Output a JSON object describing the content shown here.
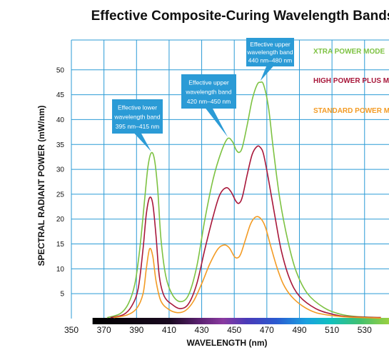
{
  "chart_data": {
    "type": "line",
    "title": "Effective Composite-Curing Wavelength Bands",
    "xlabel": "WAVELENGTH (nm)",
    "ylabel": "SPECTRAL RADIANT POWER (mW/nm)",
    "xlim": [
      350,
      545
    ],
    "ylim": [
      0,
      56
    ],
    "x_ticks": [
      350,
      370,
      390,
      410,
      430,
      450,
      470,
      490,
      510,
      530
    ],
    "y_ticks": [
      5,
      10,
      15,
      20,
      25,
      30,
      35,
      40,
      45,
      50
    ],
    "grid": true,
    "legend_position": "top-right",
    "series": [
      {
        "name": "XTRA POWER MODE",
        "color": "#7dc242",
        "points": [
          [
            372,
            0.2
          ],
          [
            380,
            1.0
          ],
          [
            385,
            3.0
          ],
          [
            389,
            7.0
          ],
          [
            392,
            14.0
          ],
          [
            395,
            24.0
          ],
          [
            397,
            30.5
          ],
          [
            399,
            33.3
          ],
          [
            401,
            32.0
          ],
          [
            403,
            26.0
          ],
          [
            405,
            16.0
          ],
          [
            408,
            8.5
          ],
          [
            412,
            4.8
          ],
          [
            417,
            3.4
          ],
          [
            422,
            4.8
          ],
          [
            427,
            10.5
          ],
          [
            432,
            20.0
          ],
          [
            437,
            28.0
          ],
          [
            442,
            33.5
          ],
          [
            446,
            36.2
          ],
          [
            449,
            35.5
          ],
          [
            451,
            34.0
          ],
          [
            453,
            33.4
          ],
          [
            455,
            34.5
          ],
          [
            458,
            39.0
          ],
          [
            461,
            44.0
          ],
          [
            464,
            47.0
          ],
          [
            466,
            47.5
          ],
          [
            468,
            47.0
          ],
          [
            471,
            42.5
          ],
          [
            474,
            34.0
          ],
          [
            478,
            24.0
          ],
          [
            483,
            15.5
          ],
          [
            488,
            9.5
          ],
          [
            495,
            5.0
          ],
          [
            505,
            2.2
          ],
          [
            515,
            0.9
          ],
          [
            525,
            0.4
          ],
          [
            540,
            0.2
          ]
        ]
      },
      {
        "name": "HIGH POWER PLUS MODE",
        "color": "#a8173a",
        "points": [
          [
            374,
            0.2
          ],
          [
            382,
            0.8
          ],
          [
            387,
            2.5
          ],
          [
            391,
            6.0
          ],
          [
            394,
            14.0
          ],
          [
            396,
            21.0
          ],
          [
            398,
            24.3
          ],
          [
            400,
            23.0
          ],
          [
            402,
            16.5
          ],
          [
            404,
            8.5
          ],
          [
            407,
            4.5
          ],
          [
            412,
            2.8
          ],
          [
            417,
            2.0
          ],
          [
            422,
            3.0
          ],
          [
            427,
            7.0
          ],
          [
            432,
            14.0
          ],
          [
            437,
            20.5
          ],
          [
            441,
            24.8
          ],
          [
            445,
            26.3
          ],
          [
            448,
            25.5
          ],
          [
            451,
            23.6
          ],
          [
            453,
            23.2
          ],
          [
            455,
            24.5
          ],
          [
            458,
            29.0
          ],
          [
            461,
            33.0
          ],
          [
            464,
            34.6
          ],
          [
            466,
            34.4
          ],
          [
            468,
            33.0
          ],
          [
            471,
            28.0
          ],
          [
            475,
            20.5
          ],
          [
            479,
            13.5
          ],
          [
            484,
            8.0
          ],
          [
            490,
            4.5
          ],
          [
            500,
            2.0
          ],
          [
            510,
            0.9
          ],
          [
            520,
            0.4
          ],
          [
            540,
            0.2
          ]
        ]
      },
      {
        "name": "STANDARD POWER MODE",
        "color": "#f39b24",
        "points": [
          [
            376,
            0.2
          ],
          [
            384,
            0.7
          ],
          [
            390,
            2.0
          ],
          [
            394,
            5.0
          ],
          [
            396,
            10.0
          ],
          [
            398,
            14.0
          ],
          [
            400,
            12.5
          ],
          [
            402,
            7.5
          ],
          [
            405,
            3.5
          ],
          [
            410,
            1.8
          ],
          [
            415,
            1.2
          ],
          [
            420,
            1.6
          ],
          [
            425,
            3.5
          ],
          [
            430,
            7.0
          ],
          [
            435,
            11.0
          ],
          [
            440,
            14.0
          ],
          [
            444,
            14.8
          ],
          [
            447,
            14.2
          ],
          [
            450,
            12.5
          ],
          [
            452,
            12.2
          ],
          [
            454,
            13.0
          ],
          [
            457,
            16.0
          ],
          [
            460,
            19.0
          ],
          [
            463,
            20.4
          ],
          [
            466,
            20.2
          ],
          [
            469,
            18.5
          ],
          [
            472,
            15.0
          ],
          [
            476,
            10.5
          ],
          [
            480,
            7.0
          ],
          [
            485,
            4.5
          ],
          [
            492,
            2.5
          ],
          [
            500,
            1.2
          ],
          [
            510,
            0.6
          ],
          [
            520,
            0.3
          ],
          [
            540,
            0.1
          ]
        ]
      }
    ],
    "annotations": [
      {
        "lines": [
          "Effective lower",
          "wavelength band",
          "395 nm–415 nm"
        ],
        "band": [
          395,
          415
        ],
        "target": [
          399,
          33.3
        ]
      },
      {
        "lines": [
          "Effective upper",
          "wavelength band",
          "420 nm–450 nm"
        ],
        "band": [
          420,
          450
        ],
        "target": [
          446,
          36.2
        ]
      },
      {
        "lines": [
          "Effective upper",
          "wavelength band",
          "440 nm–480 nm"
        ],
        "band": [
          440,
          480
        ],
        "target": [
          466,
          47.5
        ]
      }
    ],
    "colors": {
      "grid": "#2b9bd6",
      "callout": "#2b9bd6"
    }
  }
}
